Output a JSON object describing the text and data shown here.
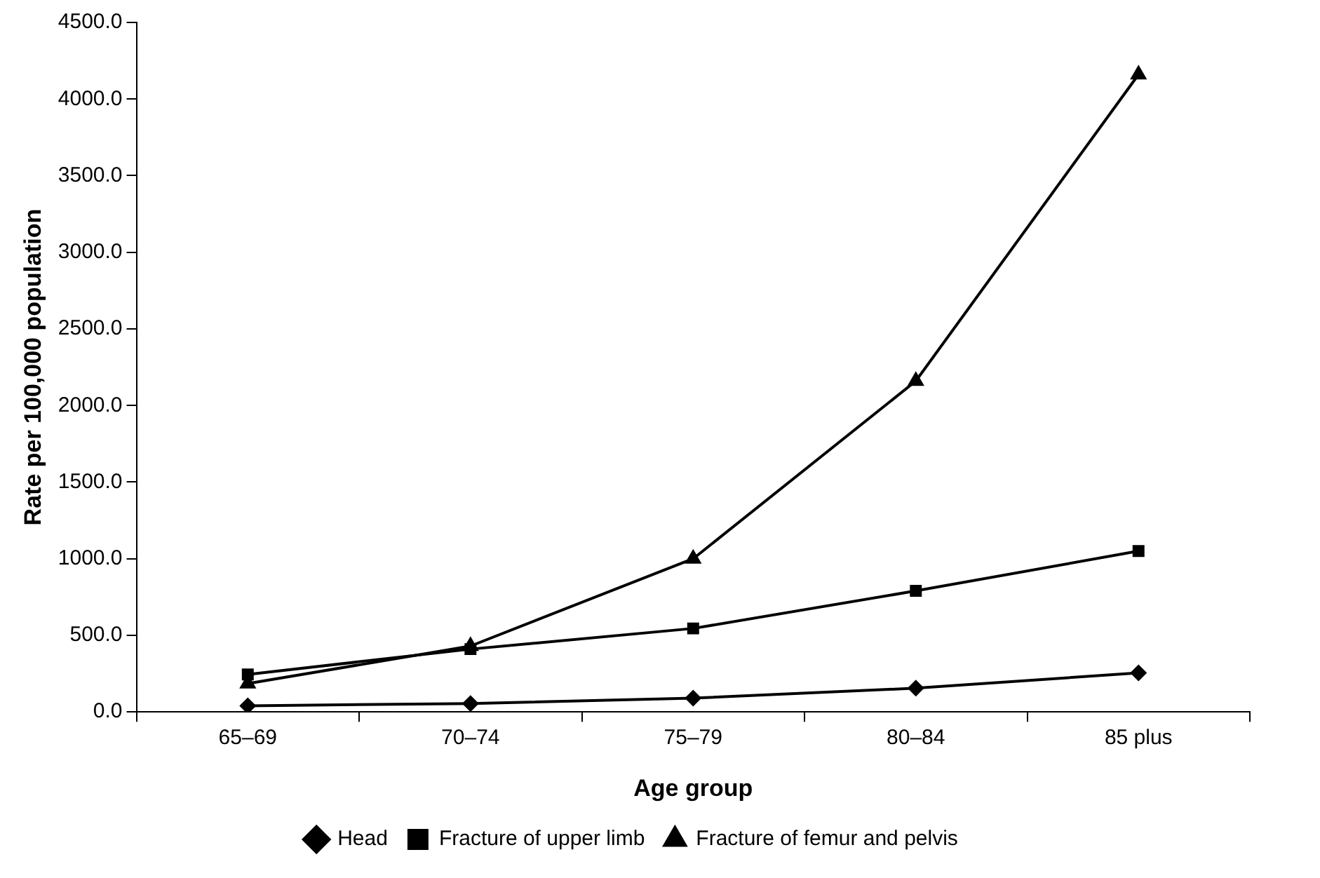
{
  "chart_data": {
    "type": "line",
    "xlabel": "Age group",
    "ylabel": "Rate per 100,000 population",
    "categories": [
      "65–69",
      "70–74",
      "75–79",
      "80–84",
      "85 plus"
    ],
    "series": [
      {
        "name": "Head",
        "color": "#000000",
        "marker": "diamond",
        "values": [
          40,
          55,
          90,
          155,
          255
        ]
      },
      {
        "name": "Fracture of upper limb",
        "color": "#000000",
        "marker": "square",
        "values": [
          245,
          410,
          545,
          790,
          1050
        ]
      },
      {
        "name": "Fracture of femur and pelvis",
        "color": "#000000",
        "marker": "triangle",
        "values": [
          185,
          430,
          1000,
          2160,
          4160
        ]
      }
    ],
    "ylim": [
      0,
      4500
    ],
    "yticks": [
      {
        "value": 0,
        "label": "0.0"
      },
      {
        "value": 500,
        "label": "500.0"
      },
      {
        "value": 1000,
        "label": "1000.0"
      },
      {
        "value": 1500,
        "label": "1500.0"
      },
      {
        "value": 2000,
        "label": "2000.0"
      },
      {
        "value": 2500,
        "label": "2500.0"
      },
      {
        "value": 3000,
        "label": "3000.0"
      },
      {
        "value": 3500,
        "label": "3500.0"
      },
      {
        "value": 4000,
        "label": "4000.0"
      },
      {
        "value": 4500,
        "label": "4500.0"
      }
    ],
    "grid": false,
    "legend": "bottom",
    "line_style": "solid"
  }
}
